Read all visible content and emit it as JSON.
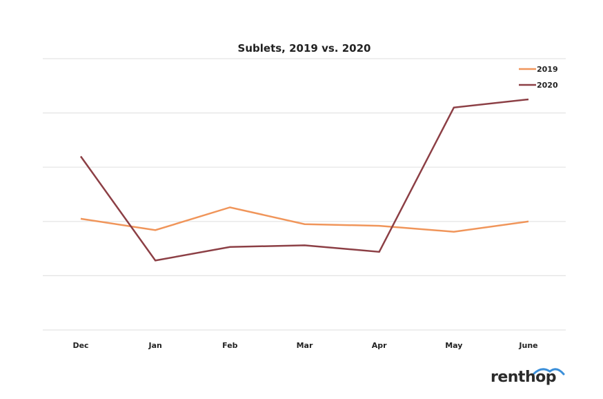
{
  "chart_data": {
    "type": "line",
    "title": "Sublets, 2019 vs. 2020",
    "xlabel": "",
    "ylabel": "",
    "categories": [
      "Dec",
      "Jan",
      "Feb",
      "Mar",
      "Apr",
      "May",
      "June"
    ],
    "ylim": [
      0,
      5
    ],
    "y_units": "relative (gridline intervals; no y-axis tick labels shown)",
    "grid": true,
    "legend_position": "top-right",
    "series": [
      {
        "name": "2019",
        "color": "#f0955a",
        "values": [
          2.05,
          1.84,
          2.26,
          1.95,
          1.92,
          1.81,
          2.0
        ]
      },
      {
        "name": "2020",
        "color": "#8c3f45",
        "values": [
          3.2,
          1.28,
          1.53,
          1.56,
          1.44,
          4.1,
          4.25
        ]
      }
    ]
  },
  "branding": {
    "logo_text": "renthop",
    "logo_accent": "#3b8fd9"
  }
}
